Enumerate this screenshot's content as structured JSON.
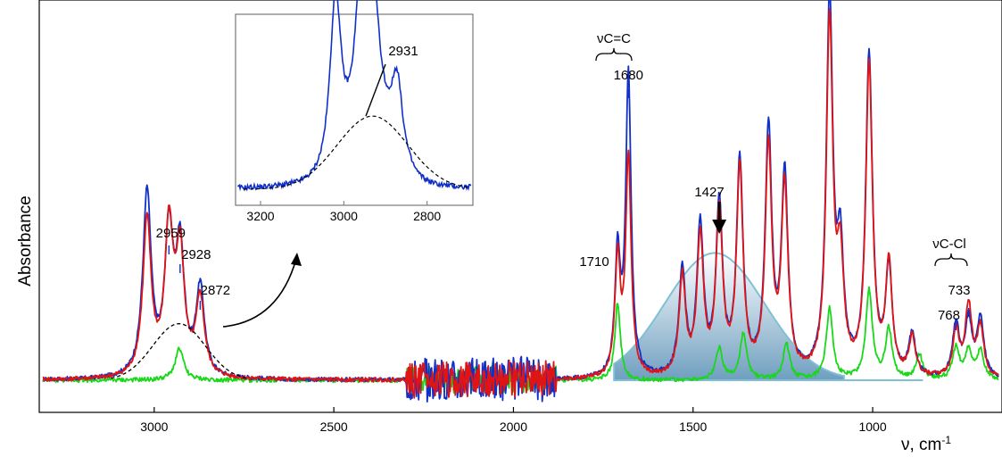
{
  "chart_data": {
    "type": "line",
    "xlabel": "ν, cm",
    "xlabel_sup": "-1",
    "ylabel": "Absorbance",
    "x_reversed": true,
    "xlim": [
      3320,
      640
    ],
    "ylim": [
      -0.05,
      1.05
    ],
    "x_ticks": [
      3000,
      2500,
      2000,
      1500,
      1000
    ],
    "x_tick_labels": [
      "3000",
      "2500",
      "2000",
      "1500",
      "1000"
    ],
    "grid": false,
    "series": [
      {
        "key": "blue",
        "color": "#1030c8",
        "peaks": [
          [
            3020,
            0.52
          ],
          [
            2959,
            0.4
          ],
          [
            2928,
            0.35
          ],
          [
            2872,
            0.25
          ],
          [
            1710,
            0.34
          ],
          [
            1680,
            0.85
          ],
          [
            1530,
            0.3
          ],
          [
            1480,
            0.42
          ],
          [
            1427,
            0.48
          ],
          [
            1370,
            0.6
          ],
          [
            1290,
            0.69
          ],
          [
            1245,
            0.56
          ],
          [
            1120,
            1.05
          ],
          [
            1090,
            0.33
          ],
          [
            1010,
            0.91
          ],
          [
            955,
            0.3
          ],
          [
            890,
            0.12
          ],
          [
            768,
            0.15
          ],
          [
            733,
            0.16
          ],
          [
            700,
            0.17
          ]
        ]
      },
      {
        "key": "red",
        "color": "#e01414",
        "peaks": [
          [
            3020,
            0.44
          ],
          [
            2959,
            0.41
          ],
          [
            2928,
            0.34
          ],
          [
            2872,
            0.22
          ],
          [
            1710,
            0.33
          ],
          [
            1680,
            0.62
          ],
          [
            1530,
            0.28
          ],
          [
            1480,
            0.39
          ],
          [
            1427,
            0.46
          ],
          [
            1370,
            0.58
          ],
          [
            1290,
            0.64
          ],
          [
            1245,
            0.53
          ],
          [
            1120,
            0.99
          ],
          [
            1090,
            0.3
          ],
          [
            1010,
            0.88
          ],
          [
            955,
            0.31
          ],
          [
            890,
            0.11
          ],
          [
            768,
            0.13
          ],
          [
            733,
            0.2
          ],
          [
            700,
            0.14
          ]
        ]
      },
      {
        "key": "green",
        "color": "#18d818",
        "peaks": [
          [
            2930,
            0.09
          ],
          [
            1710,
            0.22
          ],
          [
            1427,
            0.09
          ],
          [
            1360,
            0.13
          ],
          [
            1240,
            0.1
          ],
          [
            1120,
            0.2
          ],
          [
            1010,
            0.25
          ],
          [
            955,
            0.14
          ],
          [
            870,
            0.07
          ],
          [
            768,
            0.09
          ],
          [
            733,
            0.08
          ],
          [
            700,
            0.08
          ]
        ]
      }
    ],
    "components": [
      {
        "key": "dashed-gaussian",
        "center": 2931,
        "height": 0.16,
        "width": 110
      },
      {
        "key": "shaded-gaussian",
        "center": 1440,
        "height": 0.36,
        "width": 230
      }
    ],
    "annotations": {
      "p2959": "2959",
      "p2928": "2928",
      "p2872": "2872",
      "p1710": "1710",
      "p1680": "1680",
      "p1427": "1427",
      "p768": "768",
      "p733": "733",
      "group_cc": "νC=C",
      "group_ccl": "νC-Cl"
    },
    "inset": {
      "xlim": [
        3260,
        2690
      ],
      "x_ticks": [
        3200,
        3000,
        2800
      ],
      "x_tick_labels": [
        "3200",
        "3000",
        "2800"
      ],
      "annotation": "2931",
      "peaks": [
        [
          3020,
          1.0
        ],
        [
          2959,
          0.82
        ],
        [
          2928,
          0.66
        ],
        [
          2872,
          0.45
        ]
      ]
    }
  }
}
